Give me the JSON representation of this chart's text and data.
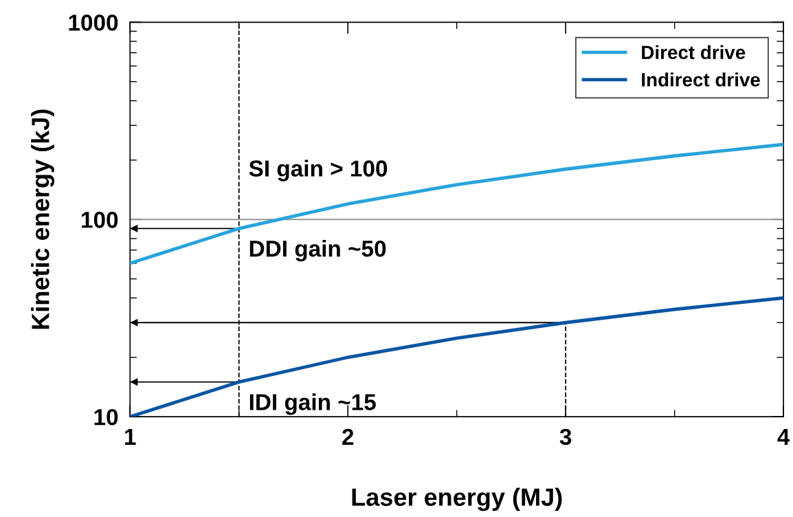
{
  "chart_data": {
    "type": "line",
    "xlabel": "Laser energy (MJ)",
    "ylabel": "Kinetic energy (kJ)",
    "series": [
      {
        "name": "Direct drive",
        "color": "#29a3dc",
        "x": [
          1,
          1.5,
          2,
          2.5,
          3,
          3.5,
          4
        ],
        "values": [
          60,
          90,
          120,
          150,
          180,
          210,
          240
        ]
      },
      {
        "name": "Indirect drive",
        "color": "#0a55a3",
        "x": [
          1,
          1.5,
          2,
          2.5,
          3,
          3.5,
          4
        ],
        "values": [
          10,
          15,
          20,
          25,
          30,
          35,
          40
        ]
      }
    ],
    "xlim": [
      1,
      4
    ],
    "xticks": [
      1,
      2,
      3,
      4
    ],
    "ylim": [
      10,
      1000
    ],
    "yticks": [
      10,
      100,
      1000
    ],
    "log": "y",
    "grid": false,
    "legend": "top right",
    "marker": "none",
    "line_style": "solid",
    "ref_lines": [
      {
        "axis": "x",
        "value": 1.5,
        "color": "#000000",
        "line_style": "dashed"
      },
      {
        "axis": "x",
        "value": 3,
        "color": "#000000",
        "line_style": "dashed"
      },
      {
        "axis": "y",
        "value": 100,
        "color": "#999999",
        "label": "SI gain > 100"
      },
      {
        "axis": "y",
        "value": 90,
        "color": "#000000",
        "line_style": "solid",
        "label": "DDI gain ~50"
      },
      {
        "axis": "y",
        "value": 30,
        "color": "#000000",
        "line_style": "solid"
      },
      {
        "axis": "y",
        "value": 15,
        "color": "#000000",
        "line_style": "solid",
        "label": "IDI gain ~15"
      }
    ]
  }
}
